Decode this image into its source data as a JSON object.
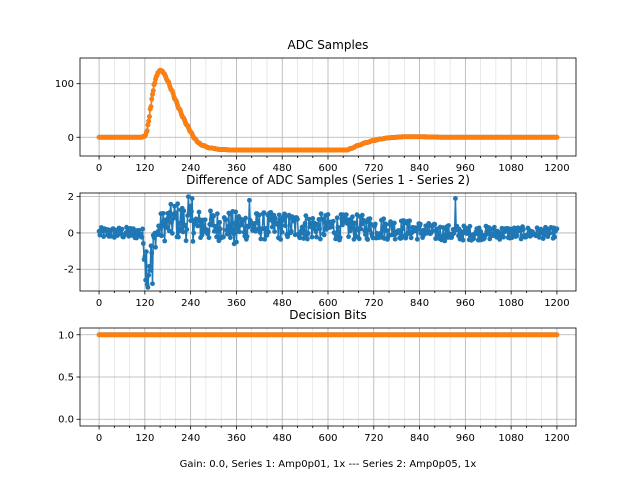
{
  "chart_data": [
    {
      "type": "line",
      "title": "ADC Samples",
      "x_range": [
        -50,
        1250
      ],
      "ylim": [
        -35,
        148
      ],
      "xticks": [
        0,
        120,
        240,
        360,
        480,
        600,
        720,
        840,
        960,
        1080,
        1200
      ],
      "yticks": [
        0,
        100
      ],
      "grid": true,
      "series": [
        {
          "name": "Series 1",
          "color": "#1f77b4",
          "points": [
            [
              0,
              0
            ],
            [
              110,
              0
            ],
            [
              120,
              2
            ],
            [
              125,
              10
            ],
            [
              130,
              30
            ],
            [
              135,
              55
            ],
            [
              140,
              80
            ],
            [
              145,
              100
            ],
            [
              150,
              113
            ],
            [
              155,
              121
            ],
            [
              160,
              125
            ],
            [
              165,
              124
            ],
            [
              170,
              119
            ],
            [
              180,
              105
            ],
            [
              190,
              88
            ],
            [
              200,
              70
            ],
            [
              210,
              53
            ],
            [
              220,
              37
            ],
            [
              230,
              23
            ],
            [
              240,
              10
            ],
            [
              250,
              -2
            ],
            [
              260,
              -10
            ],
            [
              270,
              -15
            ],
            [
              290,
              -20
            ],
            [
              320,
              -23
            ],
            [
              360,
              -24
            ],
            [
              480,
              -24
            ],
            [
              600,
              -24
            ],
            [
              650,
              -24
            ],
            [
              660,
              -21
            ],
            [
              680,
              -15
            ],
            [
              700,
              -10
            ],
            [
              720,
              -6
            ],
            [
              740,
              -3
            ],
            [
              760,
              -1
            ],
            [
              780,
              0
            ],
            [
              800,
              1
            ],
            [
              840,
              1
            ],
            [
              900,
              0
            ],
            [
              1200,
              0
            ]
          ]
        },
        {
          "name": "Series 2",
          "color": "#ff7f0e",
          "points": [
            [
              0,
              0
            ],
            [
              110,
              0
            ],
            [
              120,
              2
            ],
            [
              125,
              10
            ],
            [
              130,
              30
            ],
            [
              135,
              55
            ],
            [
              140,
              80
            ],
            [
              145,
              100
            ],
            [
              150,
              113
            ],
            [
              155,
              121
            ],
            [
              160,
              125
            ],
            [
              165,
              124
            ],
            [
              170,
              119
            ],
            [
              180,
              105
            ],
            [
              190,
              88
            ],
            [
              200,
              70
            ],
            [
              210,
              53
            ],
            [
              220,
              37
            ],
            [
              230,
              23
            ],
            [
              240,
              10
            ],
            [
              250,
              -2
            ],
            [
              260,
              -10
            ],
            [
              270,
              -15
            ],
            [
              290,
              -20
            ],
            [
              320,
              -23
            ],
            [
              360,
              -24
            ],
            [
              480,
              -24
            ],
            [
              600,
              -24
            ],
            [
              650,
              -24
            ],
            [
              660,
              -21
            ],
            [
              680,
              -15
            ],
            [
              700,
              -10
            ],
            [
              720,
              -6
            ],
            [
              740,
              -3
            ],
            [
              760,
              -1
            ],
            [
              780,
              0
            ],
            [
              800,
              1
            ],
            [
              840,
              1
            ],
            [
              900,
              0
            ],
            [
              1200,
              0
            ]
          ]
        }
      ]
    },
    {
      "type": "line",
      "title": "Difference of ADC Samples (Series 1 - Series 2)",
      "x_range": [
        -50,
        1250
      ],
      "ylim": [
        -3.2,
        2.2
      ],
      "xticks": [
        0,
        120,
        240,
        360,
        480,
        600,
        720,
        840,
        960,
        1080,
        1200
      ],
      "yticks": [
        -2,
        0,
        2
      ],
      "grid": true,
      "series": [
        {
          "name": "Series 1 - Series 2",
          "color": "#1f77b4",
          "envelope": [
            {
              "x": 0,
              "amp": 0.3,
              "offset": 0
            },
            {
              "x": 110,
              "amp": 0.35,
              "offset": 0
            },
            {
              "x": 120,
              "amp": 1.0,
              "offset": -0.8
            },
            {
              "x": 128,
              "amp": 1.2,
              "offset": -2.0
            },
            {
              "x": 135,
              "amp": 1.0,
              "offset": -1.4
            },
            {
              "x": 145,
              "amp": 0.6,
              "offset": -0.3
            },
            {
              "x": 160,
              "amp": 0.8,
              "offset": 0.3
            },
            {
              "x": 200,
              "amp": 1.1,
              "offset": 0.7
            },
            {
              "x": 260,
              "amp": 0.9,
              "offset": 0.4
            },
            {
              "x": 360,
              "amp": 0.8,
              "offset": 0.4
            },
            {
              "x": 700,
              "amp": 0.7,
              "offset": 0.3
            },
            {
              "x": 800,
              "amp": 0.55,
              "offset": 0.2
            },
            {
              "x": 900,
              "amp": 0.45,
              "offset": 0.0
            },
            {
              "x": 1200,
              "amp": 0.3,
              "offset": 0.0
            }
          ],
          "highlights": [
            [
              128,
              -3.0
            ],
            [
              122,
              -2.6
            ],
            [
              140,
              -2.8
            ],
            [
              235,
              2.0
            ],
            [
              245,
              1.9
            ],
            [
              395,
              1.8
            ],
            [
              935,
              1.9
            ],
            [
              355,
              -0.6
            ],
            [
              360,
              -0.5
            ]
          ]
        }
      ]
    },
    {
      "type": "line",
      "title": "Decision Bits",
      "x_range": [
        -50,
        1250
      ],
      "ylim": [
        -0.08,
        1.08
      ],
      "xticks": [
        0,
        120,
        240,
        360,
        480,
        600,
        720,
        840,
        960,
        1080,
        1200
      ],
      "yticks": [
        0.0,
        0.5,
        1.0
      ],
      "grid": true,
      "xlabel": "Gain: 0.0, Series 1: Amp0p01, 1x --- Series 2: Amp0p05, 1x",
      "series": [
        {
          "name": "Series 1",
          "color": "#1f77b4",
          "points": [
            [
              0,
              1
            ],
            [
              1200,
              1
            ]
          ]
        },
        {
          "name": "Series 2",
          "color": "#ff7f0e",
          "points": [
            [
              0,
              1
            ],
            [
              1200,
              1
            ]
          ]
        }
      ]
    }
  ]
}
